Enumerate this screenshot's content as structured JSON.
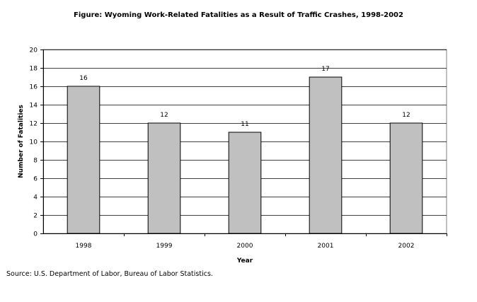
{
  "chart_data": {
    "type": "bar",
    "title": "Figure:  Wyoming Work-Related Fatalities as a Result of Traffic Crashes, 1998-2002",
    "categories": [
      "1998",
      "1999",
      "2000",
      "2001",
      "2002"
    ],
    "values": [
      16,
      12,
      11,
      17,
      12
    ],
    "data_labels": [
      "16",
      "12",
      "11",
      "17",
      "12"
    ],
    "xlabel": "Year",
    "ylabel": "Number of Fatalities",
    "ylim": [
      0,
      20
    ],
    "yticks": [
      0,
      2,
      4,
      6,
      8,
      10,
      12,
      14,
      16,
      18,
      20
    ],
    "grid": true,
    "legend": "none",
    "bar_color": "#c0c0c0",
    "bar_edge_color": "#000000",
    "grid_color": "#000000"
  },
  "source": "Source:  U.S. Department of Labor, Bureau of Labor Statistics."
}
